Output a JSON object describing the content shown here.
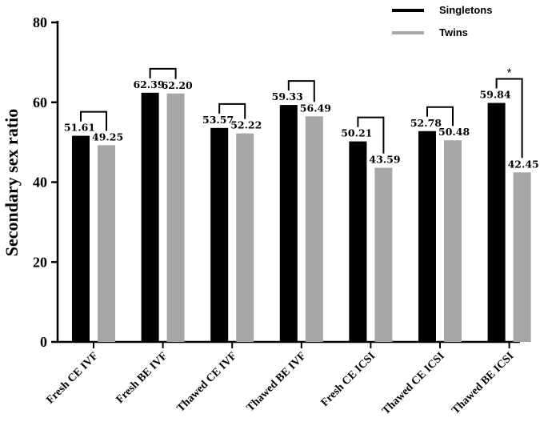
{
  "chart_data": {
    "type": "bar",
    "ylabel": "Secondary sex ratio",
    "xlabel": "",
    "ylim": [
      0,
      80
    ],
    "yticks": [
      0,
      20,
      40,
      60,
      80
    ],
    "categories": [
      "Fresh CE IVF",
      "Fresh BE IVF",
      "Thawed CE IVF",
      "Thawed BE IVF",
      "Fresh CE ICSI",
      "Thawed CE ICSI",
      "Thawed BE ICSI"
    ],
    "series": [
      {
        "name": "Singletons",
        "color": "#000000",
        "values": [
          51.61,
          62.39,
          53.57,
          59.33,
          50.21,
          52.78,
          59.84
        ],
        "labels": [
          "51.61",
          "62.39",
          "53.57",
          "59.33",
          "50.21",
          "52.78",
          "59.84"
        ]
      },
      {
        "name": "Twins",
        "color": "#a6a6a6",
        "values": [
          49.25,
          62.2,
          52.22,
          56.49,
          43.59,
          50.48,
          42.45
        ],
        "labels": [
          "49.25",
          "62.20",
          "52.22",
          "56.49",
          "43.59",
          "50.48",
          "42.45"
        ]
      }
    ],
    "significance": [
      "",
      "",
      "",
      "",
      "",
      "",
      "*"
    ],
    "grid": false,
    "legend_position": "top-right"
  }
}
